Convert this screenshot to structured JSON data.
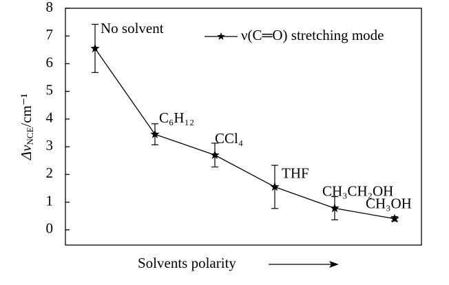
{
  "chart_data": {
    "type": "line",
    "y_label": [
      "Δν",
      "NCE",
      "/cm⁻¹"
    ],
    "x_label": "Solvents polarity",
    "categories": [
      "No solvent",
      "C₆H₁₂",
      "CCl₄",
      "THF",
      "CH₃CH₂OH",
      "CH₃OH"
    ],
    "series": [
      {
        "name": "ν(C═O) stretching mode",
        "color": "#000000",
        "values": [
          6.55,
          3.45,
          2.7,
          1.55,
          0.78,
          0.4
        ],
        "errors": [
          0.87,
          0.38,
          0.43,
          0.78,
          0.42,
          0.08
        ]
      }
    ],
    "ylim": [
      -0.55,
      8
    ],
    "yticks": [
      0,
      1,
      2,
      3,
      4,
      5,
      6,
      7,
      8
    ],
    "legend": "top-right"
  }
}
